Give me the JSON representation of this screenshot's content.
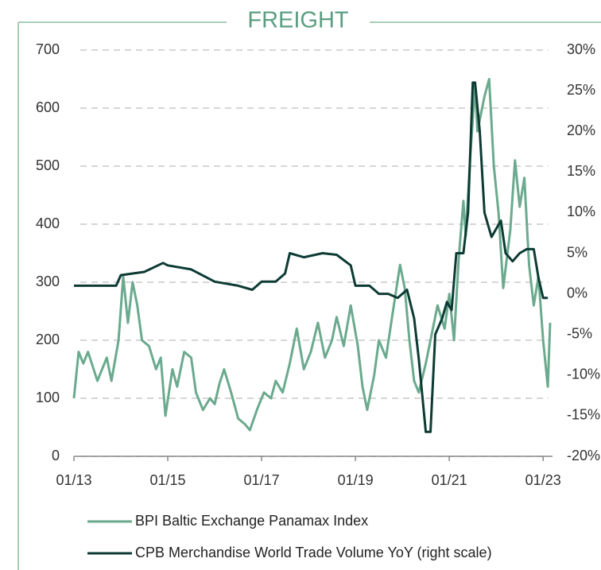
{
  "chart_data": {
    "type": "line",
    "title": "FREIGHT",
    "xlim": [
      2013,
      2023.2
    ],
    "xticks": [
      {
        "value": 2013,
        "label": "01/13"
      },
      {
        "value": 2015,
        "label": "01/15"
      },
      {
        "value": 2017,
        "label": "01/17"
      },
      {
        "value": 2019,
        "label": "01/19"
      },
      {
        "value": 2021,
        "label": "01/21"
      },
      {
        "value": 2023,
        "label": "01/23"
      }
    ],
    "ylim": [
      0,
      700
    ],
    "yticks": [
      0,
      100,
      200,
      300,
      400,
      500,
      600,
      700
    ],
    "y2lim": [
      -20,
      30
    ],
    "y2ticks": [
      {
        "value": -20,
        "label": "-20%"
      },
      {
        "value": -15,
        "label": "-15%"
      },
      {
        "value": -10,
        "label": "-10%"
      },
      {
        "value": -5,
        "label": "-5%"
      },
      {
        "value": 0,
        "label": "0%"
      },
      {
        "value": 5,
        "label": "5%"
      },
      {
        "value": 10,
        "label": "10%"
      },
      {
        "value": 15,
        "label": "15%"
      },
      {
        "value": 20,
        "label": "20%"
      },
      {
        "value": 25,
        "label": "25%"
      },
      {
        "value": 30,
        "label": "30%"
      }
    ],
    "grid": true,
    "legend": "bottom",
    "series": [
      {
        "name": "BPI Baltic Exchange Panamax Index",
        "color": "#6aaa8e",
        "axis": "y",
        "x": [
          2013.0,
          2013.1,
          2013.2,
          2013.3,
          2013.5,
          2013.7,
          2013.8,
          2013.95,
          2014.05,
          2014.15,
          2014.25,
          2014.35,
          2014.45,
          2014.6,
          2014.75,
          2014.85,
          2014.95,
          2015.1,
          2015.2,
          2015.35,
          2015.5,
          2015.6,
          2015.75,
          2015.9,
          2016.0,
          2016.1,
          2016.2,
          2016.35,
          2016.5,
          2016.65,
          2016.75,
          2016.9,
          2017.05,
          2017.2,
          2017.3,
          2017.45,
          2017.6,
          2017.75,
          2017.9,
          2018.05,
          2018.2,
          2018.35,
          2018.5,
          2018.6,
          2018.75,
          2018.9,
          2019.05,
          2019.15,
          2019.25,
          2019.4,
          2019.5,
          2019.65,
          2019.8,
          2019.95,
          2020.05,
          2020.15,
          2020.25,
          2020.35,
          2020.5,
          2020.6,
          2020.75,
          2020.9,
          2021.0,
          2021.1,
          2021.2,
          2021.3,
          2021.35,
          2021.45,
          2021.55,
          2021.6,
          2021.75,
          2021.85,
          2021.95,
          2022.05,
          2022.15,
          2022.3,
          2022.4,
          2022.5,
          2022.6,
          2022.7,
          2022.8,
          2022.9,
          2023.0,
          2023.1,
          2023.15
        ],
        "values": [
          100,
          180,
          160,
          180,
          130,
          170,
          130,
          200,
          310,
          230,
          300,
          260,
          200,
          190,
          150,
          170,
          70,
          150,
          120,
          180,
          170,
          110,
          80,
          100,
          90,
          125,
          150,
          110,
          65,
          55,
          45,
          80,
          110,
          100,
          130,
          110,
          160,
          220,
          150,
          180,
          230,
          170,
          200,
          240,
          190,
          260,
          190,
          120,
          80,
          140,
          200,
          170,
          250,
          330,
          290,
          200,
          130,
          110,
          160,
          200,
          260,
          220,
          280,
          200,
          340,
          440,
          380,
          520,
          640,
          560,
          620,
          650,
          500,
          420,
          290,
          390,
          510,
          430,
          480,
          330,
          260,
          310,
          200,
          120,
          230
        ]
      },
      {
        "name": "CPB Merchandise World Trade Volume YoY (right scale)",
        "color": "#0d3b34",
        "axis": "y2",
        "x": [
          2013.0,
          2013.9,
          2014.0,
          2014.5,
          2014.9,
          2015.0,
          2015.5,
          2016.0,
          2016.5,
          2016.8,
          2017.0,
          2017.3,
          2017.5,
          2017.6,
          2017.9,
          2018.3,
          2018.6,
          2018.9,
          2019.0,
          2019.3,
          2019.5,
          2019.7,
          2019.9,
          2020.1,
          2020.25,
          2020.35,
          2020.5,
          2020.6,
          2020.7,
          2020.85,
          2020.95,
          2021.05,
          2021.15,
          2021.3,
          2021.4,
          2021.5,
          2021.55,
          2021.65,
          2021.75,
          2021.9,
          2022.0,
          2022.1,
          2022.2,
          2022.35,
          2022.5,
          2022.65,
          2022.8,
          2022.9,
          2023.0,
          2023.1
        ],
        "values": [
          1,
          1,
          2.3,
          2.7,
          3.8,
          3.5,
          3,
          1.5,
          1,
          0.5,
          1.5,
          1.5,
          2.5,
          5,
          4.5,
          5,
          4.8,
          3.5,
          1,
          1,
          0,
          0,
          -0.5,
          0.5,
          -3,
          -8,
          -17,
          -17,
          -5,
          -3,
          -1,
          -2,
          5,
          5,
          10,
          26,
          26,
          20,
          10,
          7,
          8,
          9,
          5,
          4,
          5,
          5.5,
          5.5,
          2,
          -0.5,
          -0.5
        ]
      }
    ]
  }
}
